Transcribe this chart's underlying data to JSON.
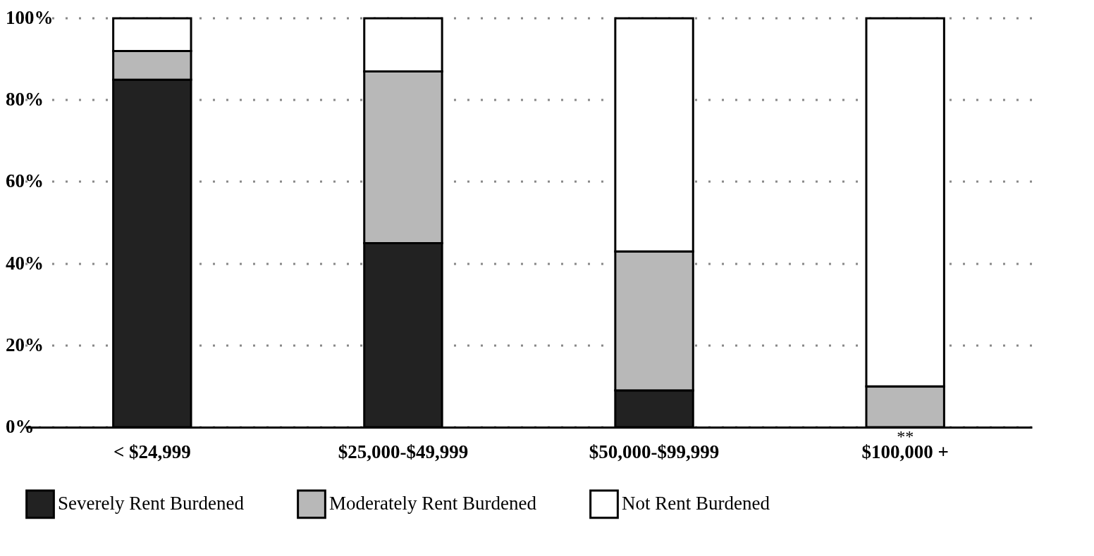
{
  "chart_data": {
    "type": "bar",
    "stacked": true,
    "categories": [
      "< $24,999",
      "$25,000-$49,999",
      "$50,000-$99,999",
      "$100,000 +"
    ],
    "series": [
      {
        "name": "Severely Rent Burdened",
        "color": "#222222",
        "values": [
          85,
          45,
          9,
          null
        ]
      },
      {
        "name": "Moderately Rent Burdened",
        "color": "#b8b8b8",
        "values": [
          7,
          42,
          34,
          10
        ]
      },
      {
        "name": "Not Rent Burdened",
        "color": "#ffffff",
        "values": [
          8,
          13,
          57,
          90
        ]
      }
    ],
    "ylim": [
      0,
      100
    ],
    "yticks": [
      {
        "value": 0,
        "label": "0%"
      },
      {
        "value": 20,
        "label": "20%"
      },
      {
        "value": 40,
        "label": "40%"
      },
      {
        "value": 60,
        "label": "60%"
      },
      {
        "value": 80,
        "label": "80%"
      },
      {
        "value": 100,
        "label": "100%"
      }
    ],
    "grid": "y",
    "legend": "bottom",
    "annotations": [
      "**"
    ]
  }
}
